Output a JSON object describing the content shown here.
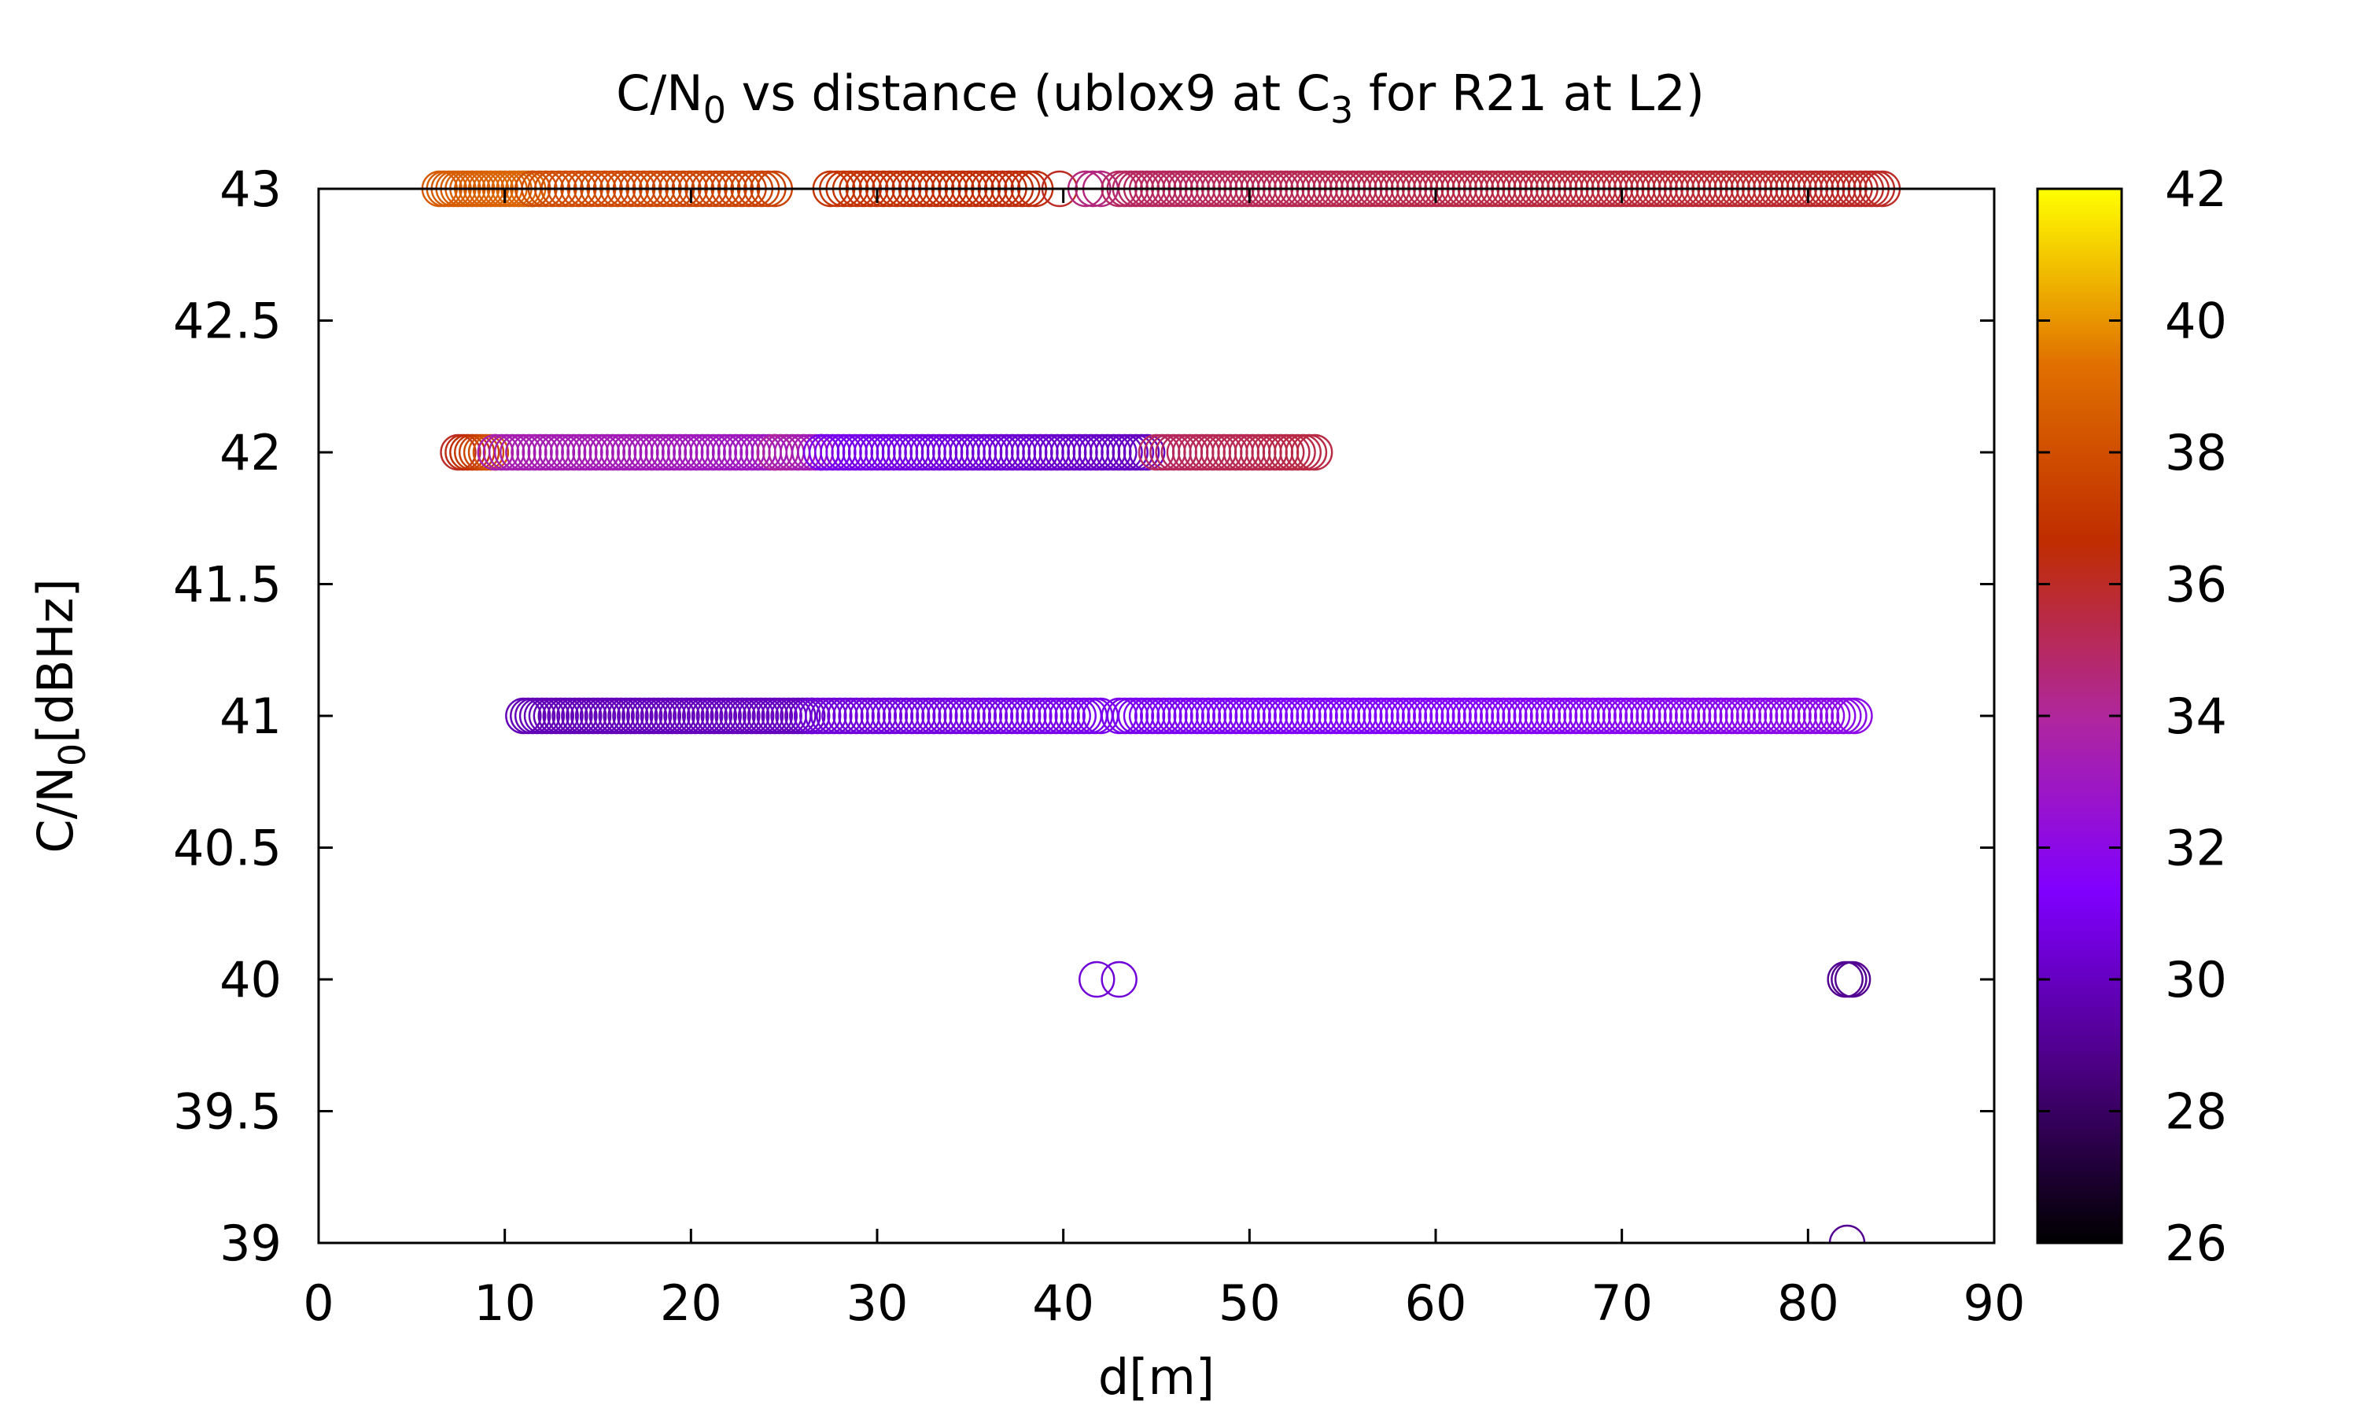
{
  "chart_data": {
    "type": "scatter",
    "title": {
      "parts": [
        "C/N",
        "0",
        " vs distance (ublox9 at C",
        "3",
        " for R21 at L2)"
      ]
    },
    "xlabel": "d[m]",
    "ylabel": {
      "parts": [
        "C/N",
        "0",
        "[dBHz]"
      ]
    },
    "xlim": [
      0,
      90
    ],
    "ylim": [
      39,
      43
    ],
    "xticks": [
      "0",
      "10",
      "20",
      "30",
      "40",
      "50",
      "60",
      "70",
      "80",
      "90"
    ],
    "yticks": [
      "39",
      "39.5",
      "40",
      "40.5",
      "41",
      "41.5",
      "42",
      "42.5",
      "43"
    ],
    "grid": false,
    "marker": "open-circle",
    "colorbar": {
      "range": [
        26,
        42
      ],
      "ticks": [
        "26",
        "28",
        "30",
        "32",
        "34",
        "36",
        "38",
        "40",
        "42"
      ],
      "palette": [
        "#000000",
        "#4b0082",
        "#8000ff",
        "#b0279c",
        "#c02d00",
        "#e07000",
        "#ffff00"
      ]
    },
    "series": [
      {
        "y": 43,
        "segments": [
          {
            "x_start": 6.5,
            "x_end": 11.5,
            "step": 0.25,
            "c_start": 38.5,
            "c_end": 39.0
          },
          {
            "x_start": 11.5,
            "x_end": 24.5,
            "step": 0.35,
            "c_start": 38.0,
            "c_end": 37.5
          },
          {
            "x_start": 27.5,
            "x_end": 38.5,
            "step": 0.35,
            "c_start": 37.0,
            "c_end": 36.5
          },
          {
            "x_start": 39.8,
            "x_end": 39.8,
            "step": 1,
            "c_start": 36.0,
            "c_end": 36.0
          },
          {
            "x_start": 41.2,
            "x_end": 42.0,
            "step": 0.4,
            "c_start": 34.5,
            "c_end": 34.5
          },
          {
            "x_start": 43.0,
            "x_end": 84.0,
            "step": 0.3,
            "c_start": 35.0,
            "c_end": 36.0
          }
        ]
      },
      {
        "y": 42,
        "segments": [
          {
            "x_start": 7.5,
            "x_end": 9.5,
            "step": 0.25,
            "c_start": 36.0,
            "c_end": 38.5
          },
          {
            "x_start": 9.5,
            "x_end": 24.5,
            "step": 0.3,
            "c_start": 33.5,
            "c_end": 33.0
          },
          {
            "x_start": 24.5,
            "x_end": 27.0,
            "step": 0.3,
            "c_start": 34.0,
            "c_end": 33.0
          },
          {
            "x_start": 27.0,
            "x_end": 44.5,
            "step": 0.3,
            "c_start": 31.0,
            "c_end": 30.0
          },
          {
            "x_start": 45.0,
            "x_end": 53.5,
            "step": 0.3,
            "c_start": 35.0,
            "c_end": 35.5
          }
        ]
      },
      {
        "y": 41,
        "segments": [
          {
            "x_start": 11.0,
            "x_end": 26.5,
            "step": 0.25,
            "c_start": 29.8,
            "c_end": 30.0
          },
          {
            "x_start": 26.5,
            "x_end": 42.0,
            "step": 0.3,
            "c_start": 30.5,
            "c_end": 31.0
          },
          {
            "x_start": 43.0,
            "x_end": 82.5,
            "step": 0.3,
            "c_start": 31.0,
            "c_end": 32.0
          }
        ]
      },
      {
        "y": 40,
        "segments": [
          {
            "x_start": 41.8,
            "x_end": 41.8,
            "step": 1,
            "c_start": 30.5,
            "c_end": 30.5
          },
          {
            "x_start": 43.0,
            "x_end": 43.0,
            "step": 1,
            "c_start": 30.5,
            "c_end": 30.5
          },
          {
            "x_start": 82.0,
            "x_end": 82.4,
            "step": 0.2,
            "c_start": 29.0,
            "c_end": 29.0
          }
        ]
      },
      {
        "y": 39,
        "segments": [
          {
            "x_start": 82.1,
            "x_end": 82.1,
            "step": 1,
            "c_start": 29.0,
            "c_end": 29.0
          }
        ]
      }
    ]
  }
}
